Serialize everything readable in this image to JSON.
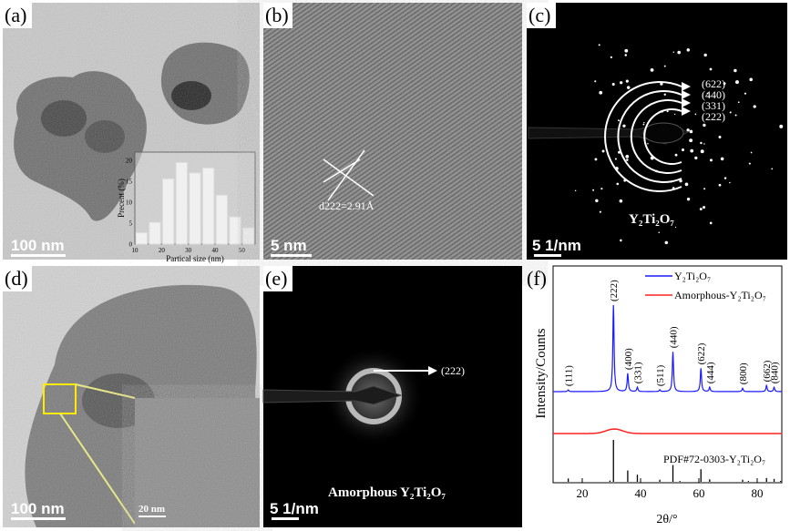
{
  "panels": {
    "a": {
      "label": "(a)",
      "scale_bar": "100 nm"
    },
    "b": {
      "label": "(b)",
      "scale_bar": "5 nm",
      "annotation": "d222=2.91Å"
    },
    "c": {
      "label": "(c)",
      "scale_bar": "5 1/nm",
      "caption": "Y₂Ti₂O₇",
      "rings": [
        "(622)",
        "(440)",
        "(331)",
        "(222)"
      ]
    },
    "d": {
      "label": "(d)",
      "scale_bar": "100 nm",
      "inset_scale_bar": "20 nm"
    },
    "e": {
      "label": "(e)",
      "scale_bar": "5 1/nm",
      "caption": "Amorphous Y₂Ti₂O₇",
      "ring": "(222)"
    },
    "f": {
      "label": "(f)"
    }
  },
  "chart_data": [
    {
      "type": "bar",
      "title": "",
      "xlabel": "Partical size (nm)",
      "ylabel": "Precent (%)",
      "bin_centers": [
        12.5,
        17.5,
        22.5,
        27.5,
        32.5,
        37.5,
        42.5,
        47.5,
        52.5
      ],
      "values": [
        2.7,
        5.2,
        15.6,
        19.5,
        17.0,
        18.2,
        11.7,
        6.5,
        3.9
      ],
      "xlim": [
        10,
        55
      ],
      "ylim": [
        0,
        22
      ],
      "xticks": [
        "10",
        "20",
        "30",
        "40",
        "50"
      ],
      "yticks": [
        "0",
        "5",
        "10",
        "15",
        "20"
      ]
    },
    {
      "type": "line",
      "xlabel": "2θ/°",
      "ylabel": "Intensity/Counts",
      "xlim": [
        10,
        90
      ],
      "xticks": [
        "20",
        "40",
        "60",
        "80"
      ],
      "legend": [
        "Y₂Ti₂O₇",
        "Amorphous-Y₂Ti₂O₇"
      ],
      "legend_position": "top",
      "colors": {
        "crystalline": "#1a1aff",
        "amorphous": "#ff2020",
        "reference": "#000000"
      },
      "peaks": [
        {
          "hkl": "(111)",
          "two_theta": 15.2,
          "intensity": 2
        },
        {
          "hkl": "(222)",
          "two_theta": 30.7,
          "intensity": 100
        },
        {
          "hkl": "(400)",
          "two_theta": 35.6,
          "intensity": 21
        },
        {
          "hkl": "(331)",
          "two_theta": 38.9,
          "intensity": 5
        },
        {
          "hkl": "(511)",
          "two_theta": 46.6,
          "intensity": 2
        },
        {
          "hkl": "(440)",
          "two_theta": 51.1,
          "intensity": 46
        },
        {
          "hkl": "(622)",
          "two_theta": 60.7,
          "intensity": 27
        },
        {
          "hkl": "(444)",
          "two_theta": 63.7,
          "intensity": 5
        },
        {
          "hkl": "(800)",
          "two_theta": 75.0,
          "intensity": 4
        },
        {
          "hkl": "(662)",
          "two_theta": 83.2,
          "intensity": 7
        },
        {
          "hkl": "(840)",
          "two_theta": 85.8,
          "intensity": 5
        }
      ],
      "amorphous_hump": {
        "center": 31,
        "width": 4,
        "intensity": 5
      },
      "reference": {
        "label": "PDF#72-0303-Y₂Ti₂O₇",
        "sticks": [
          [
            15.2,
            8
          ],
          [
            29.5,
            3
          ],
          [
            30.7,
            100
          ],
          [
            35.6,
            27
          ],
          [
            38.9,
            17
          ],
          [
            46.6,
            5
          ],
          [
            51.1,
            40
          ],
          [
            53.5,
            2
          ],
          [
            60.7,
            30
          ],
          [
            63.7,
            6
          ],
          [
            75.0,
            5
          ],
          [
            77,
            2
          ],
          [
            83.2,
            9
          ],
          [
            85.8,
            7
          ],
          [
            88,
            2
          ]
        ]
      }
    }
  ]
}
